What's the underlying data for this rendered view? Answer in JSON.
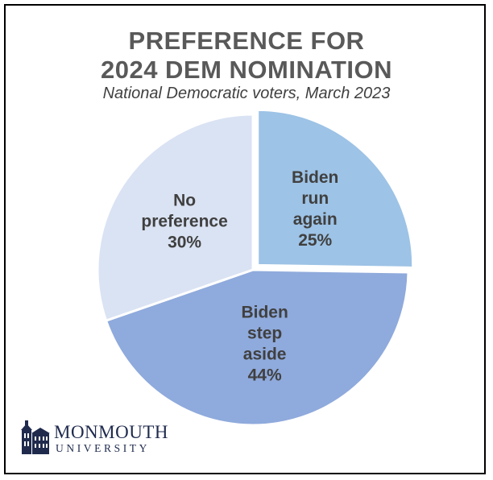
{
  "chart_data": {
    "type": "pie",
    "title": "PREFERENCE FOR\n2024 DEM NOMINATION",
    "title_lines": [
      "PREFERENCE FOR",
      "2024 DEM NOMINATION"
    ],
    "subtitle": "National Democratic voters, March 2023",
    "start": "12 o'clock, clockwise",
    "slices": [
      {
        "label": "Biden run again",
        "label_lines": [
          "Biden",
          "run",
          "again",
          "25%"
        ],
        "value": 25,
        "value_label": "25%",
        "color": "#9dc3e6",
        "exploded": true
      },
      {
        "label": "Biden step aside",
        "label_lines": [
          "Biden",
          "step",
          "aside",
          "44%"
        ],
        "value": 44,
        "value_label": "44%",
        "color": "#8faadc",
        "exploded": false
      },
      {
        "label": "No preference",
        "label_lines": [
          "No",
          "preference",
          "30%"
        ],
        "value": 30,
        "value_label": "30%",
        "color": "#dae3f3",
        "exploded": false
      }
    ]
  },
  "logo": {
    "name": "MONMOUTH",
    "sub": "UNIVERSITY",
    "color": "#1f2a4d",
    "icon": "monmouth-hall-icon"
  }
}
